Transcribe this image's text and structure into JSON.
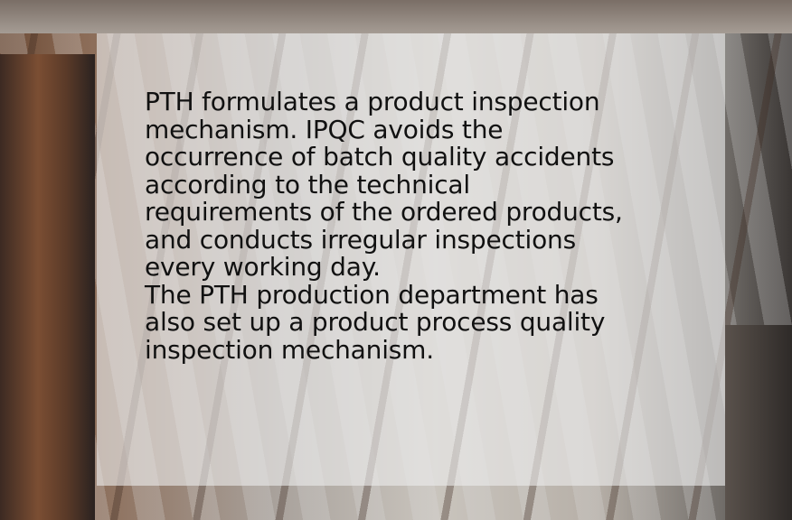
{
  "overlay": {
    "paragraphs": [
      [
        "PTH formulates a product inspection",
        "mechanism. IPQC avoids the",
        "occurrence of batch quality accidents",
        "according to the technical",
        "requirements of the ordered products,",
        "and conducts irregular inspections",
        "every working day."
      ],
      [
        "The PTH production department has",
        "also set up a product process quality",
        "inspection mechanism."
      ]
    ]
  }
}
